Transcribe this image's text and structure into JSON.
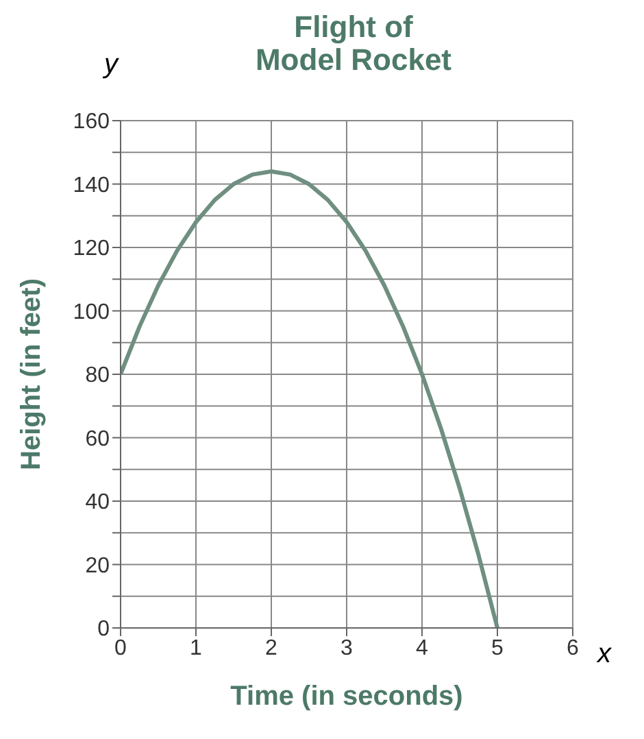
{
  "chart_data": {
    "type": "line",
    "title": "Flight of\nModel Rocket",
    "xlabel": "Time (in seconds)",
    "ylabel": "Height (in feet)",
    "annotations": [
      "y",
      "x"
    ],
    "x": [
      0,
      0.25,
      0.5,
      0.75,
      1,
      1.25,
      1.5,
      1.75,
      2,
      2.25,
      2.5,
      2.75,
      3,
      3.25,
      3.5,
      3.75,
      4,
      4.25,
      4.5,
      4.75,
      5
    ],
    "series": [
      {
        "color": "#6f8f80",
        "values": [
          80,
          95,
          108,
          119,
          128,
          135,
          140,
          143,
          144,
          143,
          140,
          135,
          128,
          119,
          108,
          95,
          80,
          63,
          44,
          23,
          0
        ]
      }
    ],
    "xlim": [
      0,
      6
    ],
    "xticks": [
      0,
      1,
      2,
      3,
      4,
      5,
      6
    ],
    "ylim": [
      0,
      160
    ],
    "yticks": [
      0,
      {
        "value": 10,
        "label": null
      },
      20,
      {
        "value": 30,
        "label": null
      },
      40,
      {
        "value": 50,
        "label": null
      },
      60,
      {
        "value": 70,
        "label": null
      },
      80,
      {
        "value": 90,
        "label": null
      },
      100,
      {
        "value": 110,
        "label": null
      },
      120,
      {
        "value": 130,
        "label": null
      },
      140,
      {
        "value": 150,
        "label": null
      },
      160
    ],
    "grid": true,
    "marker": "none",
    "line_style": "solid"
  }
}
